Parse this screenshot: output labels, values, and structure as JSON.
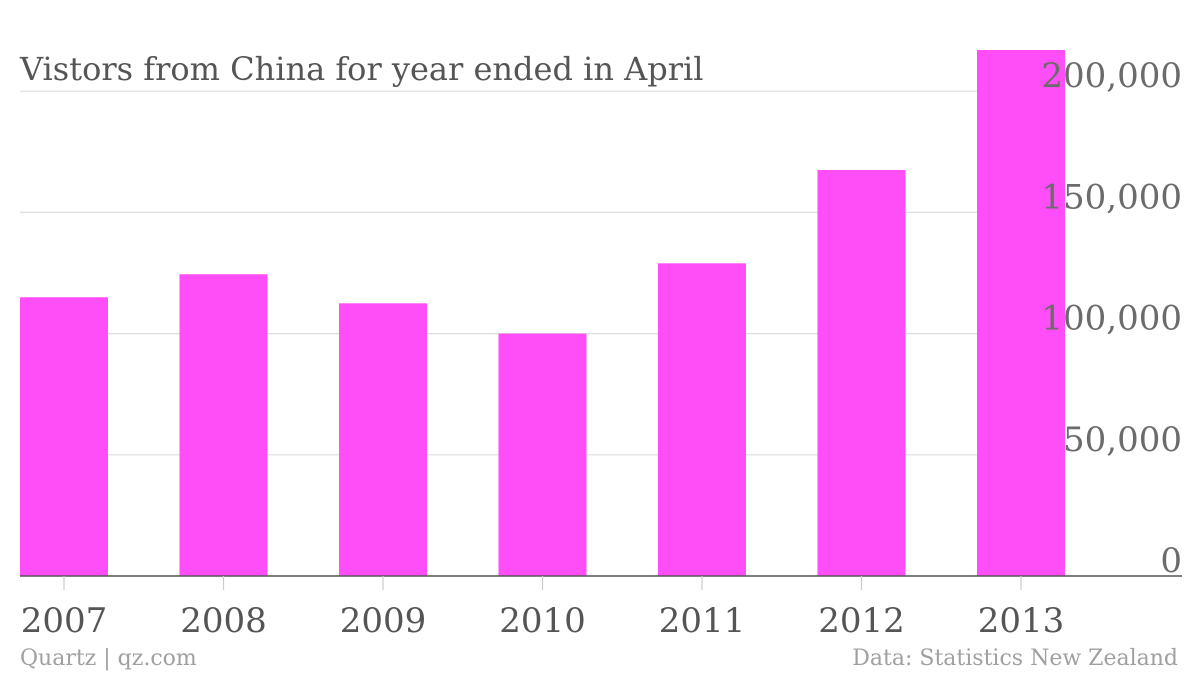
{
  "chart_data": {
    "type": "bar",
    "title": "Vistors from China for year ended in April",
    "categories": [
      "2007",
      "2008",
      "2009",
      "2010",
      "2011",
      "2012",
      "2013"
    ],
    "values": [
      115000,
      124500,
      112500,
      100000,
      129000,
      167500,
      217000
    ],
    "ylim": [
      0,
      217000
    ],
    "yticks": [
      0,
      50000,
      100000,
      150000,
      200000
    ],
    "ytick_labels": [
      "0",
      "50,000",
      "100,000",
      "150,000",
      "200,000"
    ],
    "y_axis_side": "right",
    "grid": true,
    "bar_color": "#ff4ef7"
  },
  "footer": {
    "source_left": "Quartz | qz.com",
    "source_right": "Data: Statistics New Zealand"
  }
}
